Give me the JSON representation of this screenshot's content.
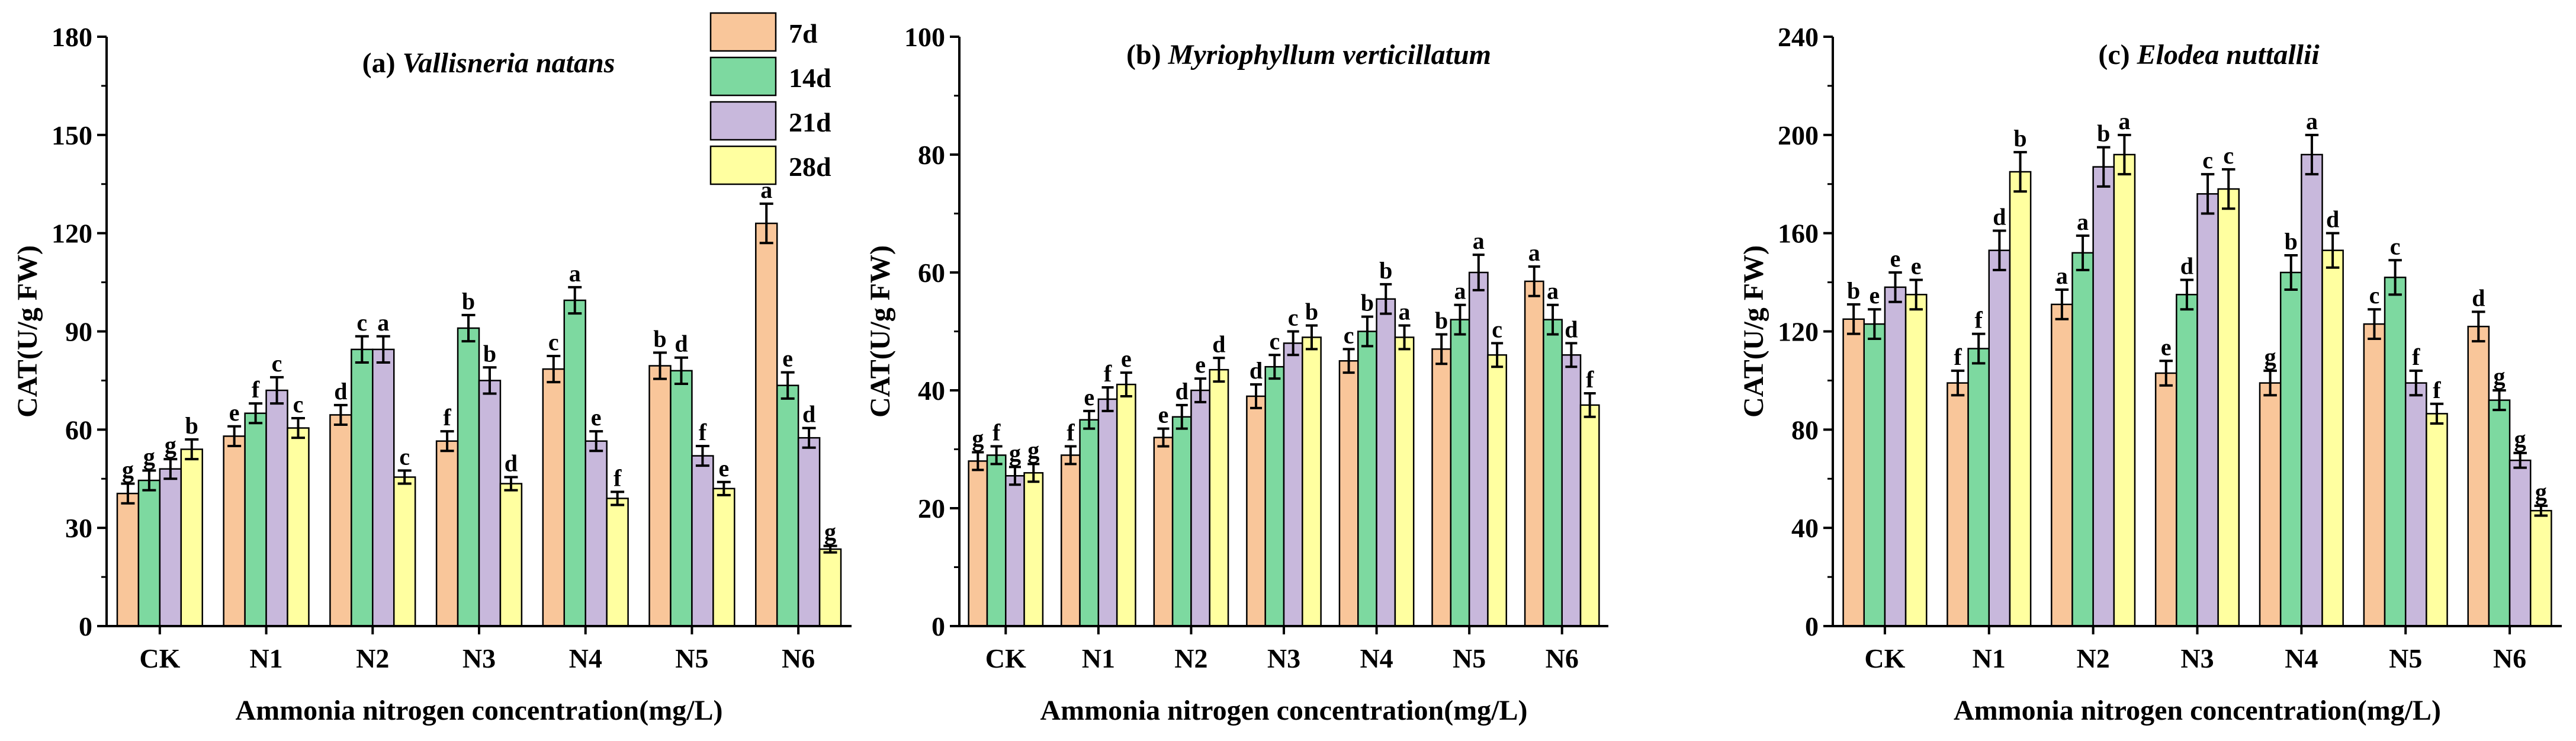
{
  "chart_data": [
    {
      "type": "bar",
      "title_prefix": "(a) ",
      "title_species": "Vallisneria natans",
      "xlabel": "Ammonia nitrogen concentration(mg/L)",
      "ylabel": "CAT(U/g FW)",
      "ylim": [
        0,
        180
      ],
      "yticks": [
        0,
        30,
        60,
        90,
        120,
        150,
        180
      ],
      "categories": [
        "CK",
        "N1",
        "N2",
        "N3",
        "N4",
        "N5",
        "N6"
      ],
      "series": [
        {
          "name": "7d",
          "values": [
            40.5,
            58,
            64.5,
            56.5,
            78.5,
            79.5,
            123
          ],
          "errors": [
            3,
            3,
            3,
            3,
            4,
            4,
            6
          ],
          "letters": [
            "g",
            "e",
            "d",
            "f",
            "c",
            "b",
            "a"
          ]
        },
        {
          "name": "14d",
          "values": [
            44.5,
            65,
            84.5,
            91,
            99.5,
            78,
            73.5
          ],
          "errors": [
            3,
            3,
            4,
            4,
            4,
            4,
            4
          ],
          "letters": [
            "g",
            "f",
            "c",
            "b",
            "a",
            "d",
            "e"
          ]
        },
        {
          "name": "21d",
          "values": [
            48,
            72,
            84.5,
            75,
            56.5,
            52,
            57.5
          ],
          "errors": [
            3,
            4,
            4,
            4,
            3,
            3,
            3
          ],
          "letters": [
            "g",
            "c",
            "a",
            "b",
            "e",
            "f",
            "d"
          ]
        },
        {
          "name": "28d",
          "values": [
            54,
            60.5,
            45.5,
            43.5,
            39,
            42,
            23.5
          ],
          "errors": [
            3,
            3,
            2,
            2,
            2,
            2,
            1
          ],
          "letters": [
            "b",
            "c",
            "c",
            "d",
            "f",
            "e",
            "g"
          ]
        }
      ]
    },
    {
      "type": "bar",
      "title_prefix": "(b) ",
      "title_species": "Myriophyllum verticillatum",
      "xlabel": "Ammonia nitrogen concentration(mg/L)",
      "ylabel": "CAT(U/g FW)",
      "ylim": [
        0,
        100
      ],
      "yticks": [
        0,
        20,
        40,
        60,
        80,
        100
      ],
      "categories": [
        "CK",
        "N1",
        "N2",
        "N3",
        "N4",
        "N5",
        "N6"
      ],
      "series": [
        {
          "name": "7d",
          "values": [
            28,
            29,
            32,
            39,
            45,
            47,
            58.5
          ],
          "errors": [
            1.5,
            1.5,
            1.5,
            2,
            2,
            2.5,
            2.5
          ],
          "letters": [
            "g",
            "f",
            "e",
            "d",
            "c",
            "b",
            "a"
          ]
        },
        {
          "name": "14d",
          "values": [
            29,
            35,
            35.5,
            44,
            50,
            52,
            52
          ],
          "errors": [
            1.5,
            1.5,
            2,
            2,
            2.5,
            2.5,
            2.5
          ],
          "letters": [
            "f",
            "e",
            "d",
            "c",
            "b",
            "a",
            "a"
          ]
        },
        {
          "name": "21d",
          "values": [
            25.5,
            38.5,
            40,
            48,
            55.5,
            60,
            46
          ],
          "errors": [
            1.5,
            2,
            2,
            2,
            2.5,
            3,
            2
          ],
          "letters": [
            "g",
            "f",
            "e",
            "c",
            "b",
            "a",
            "d"
          ]
        },
        {
          "name": "28d",
          "values": [
            26,
            41,
            43.5,
            49,
            49,
            46,
            37.5
          ],
          "errors": [
            1.5,
            2,
            2,
            2,
            2,
            2,
            2
          ],
          "letters": [
            "g",
            "e",
            "d",
            "b",
            "a",
            "c",
            "f"
          ]
        }
      ]
    },
    {
      "type": "bar",
      "title_prefix": "(c) ",
      "title_species": "Elodea nuttallii",
      "xlabel": "Ammonia nitrogen concentration(mg/L)",
      "ylabel": "CAT(U/g FW)",
      "ylim": [
        0,
        240
      ],
      "yticks": [
        0,
        40,
        80,
        120,
        160,
        200,
        240
      ],
      "categories": [
        "CK",
        "N1",
        "N2",
        "N3",
        "N4",
        "N5",
        "N6"
      ],
      "series": [
        {
          "name": "7d",
          "values": [
            125,
            99,
            131,
            103,
            99,
            123,
            122
          ],
          "errors": [
            6,
            5,
            6,
            5,
            5,
            6,
            6
          ],
          "letters": [
            "b",
            "f",
            "a",
            "e",
            "g",
            "c",
            "d"
          ]
        },
        {
          "name": "14d",
          "values": [
            123,
            113,
            152,
            135,
            144,
            142,
            92
          ],
          "errors": [
            6,
            6,
            7,
            6,
            7,
            7,
            4
          ],
          "letters": [
            "e",
            "f",
            "a",
            "d",
            "b",
            "c",
            "g"
          ]
        },
        {
          "name": "21d",
          "values": [
            138,
            153,
            187,
            176,
            192,
            99,
            67.5
          ],
          "errors": [
            6,
            8,
            8,
            8,
            8,
            5,
            3
          ],
          "letters": [
            "e",
            "d",
            "b",
            "c",
            "a",
            "f",
            "g"
          ]
        },
        {
          "name": "28d",
          "values": [
            135,
            185,
            192,
            178,
            153,
            86.5,
            47
          ],
          "errors": [
            6,
            8,
            8,
            8,
            7,
            4,
            2
          ],
          "letters": [
            "e",
            "b",
            "a",
            "c",
            "d",
            "f",
            "g"
          ]
        }
      ]
    }
  ],
  "legend": [
    {
      "label": "7d"
    },
    {
      "label": "14d"
    },
    {
      "label": "21d"
    },
    {
      "label": "28d"
    }
  ],
  "colors": {
    "7d": "#F9C69A",
    "14d": "#7DD9A0",
    "21d": "#C8B8DC",
    "28d": "#FFFFA0",
    "axis": "#000000",
    "error": "#000000"
  }
}
